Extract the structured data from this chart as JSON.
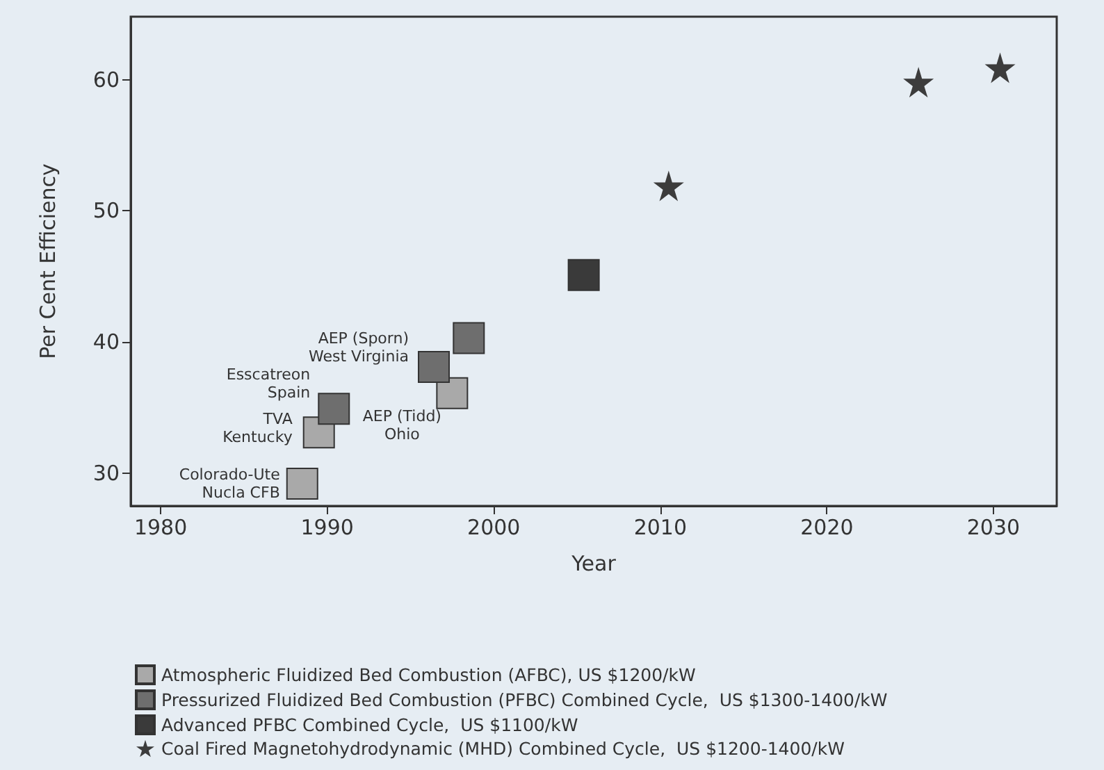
{
  "chart_data": {
    "type": "scatter",
    "xlabel": "Year",
    "ylabel": "Per Cent Efficiency",
    "xlim": [
      1978.2,
      2033.8
    ],
    "xticks": [
      1980,
      1990,
      2000,
      2010,
      2020,
      2030
    ],
    "ylim": [
      27.5,
      64.8
    ],
    "yticks": [
      30,
      40,
      50,
      60
    ],
    "grid": false,
    "legend": "bottom",
    "series": [
      {
        "name": "Atmospheric Fluidized Bed Combustion (AFBC), US $1200/kW",
        "color": "#a9a9a9",
        "marker": "square",
        "x": [
          1988.5,
          1989.5,
          1997.5
        ],
        "values": [
          29.2,
          33.1,
          36.1
        ]
      },
      {
        "name": "Pressurized Fluidized Bed Combustion (PFBC) Combined Cycle,  US $1300-1400/kW",
        "color": "#6e6e6e",
        "marker": "square",
        "x": [
          1990.4,
          1996.4,
          1998.5
        ],
        "values": [
          34.9,
          38.1,
          40.3
        ]
      },
      {
        "name": "Advanced PFBC Combined Cycle,  US $1100/kW",
        "color": "#3a3a3a",
        "marker": "square",
        "x": [
          2005.4
        ],
        "values": [
          45.1
        ]
      },
      {
        "name": "Coal Fired Magnetohydrodynamic (MHD) Combined Cycle,  US $1200-1400/kW",
        "color": "#3c3c3c",
        "marker": "star",
        "x": [
          2010.5,
          2025.5,
          2030.4
        ],
        "values": [
          51.9,
          59.8,
          60.9
        ]
      }
    ],
    "annotations": [
      {
        "text": "AEP (Sporn)\nWest Virginia",
        "x": 1996.4,
        "y": 38.1
      },
      {
        "text": "Esscatreon\nSpain",
        "x": 1990.4,
        "y": 34.9
      },
      {
        "text": "TVA\nKentucky",
        "x": 1989.5,
        "y": 33.1
      },
      {
        "text": "AEP (Tidd)\nOhio",
        "x": 1997.5,
        "y": 36.1
      },
      {
        "text": "Colorado-Ute\nNucla CFB",
        "x": 1988.5,
        "y": 29.2
      }
    ]
  }
}
